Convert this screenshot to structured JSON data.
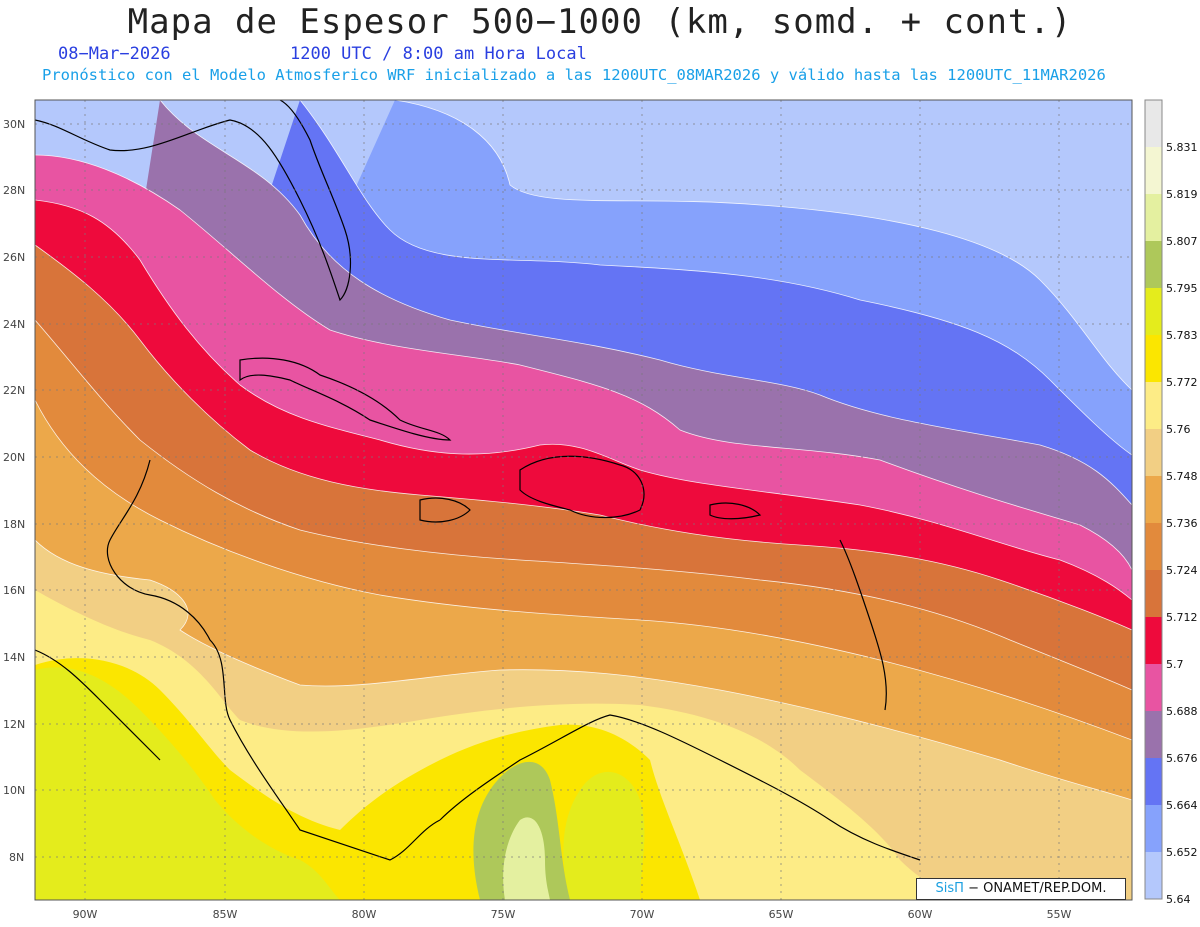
{
  "header": {
    "title": "Mapa de Espesor 500−1000 (km, somd. + cont.)",
    "date": "08−Mar−2026",
    "time": "1200 UTC / 8:00 am Hora Local",
    "subtitle": "Pronóstico con el Modelo Atmosferico WRF inicializado a las 1200UTC_08MAR2026 y válido hasta las  1200UTC_11MAR2026"
  },
  "axes": {
    "lat_labels": [
      "30N",
      "28N",
      "26N",
      "24N",
      "22N",
      "20N",
      "18N",
      "16N",
      "14N",
      "12N",
      "10N",
      "8N"
    ],
    "lon_labels": [
      "90W",
      "85W",
      "80W",
      "75W",
      "70W",
      "65W",
      "60W",
      "55W"
    ]
  },
  "legend": {
    "labels": [
      "5.831",
      "5.819",
      "5.807",
      "5.795",
      "5.783",
      "5.772",
      "5.76",
      "5.748",
      "5.736",
      "5.724",
      "5.712",
      "5.7",
      "5.688",
      "5.676",
      "5.664",
      "5.652",
      "5.64"
    ],
    "colors": [
      "#e8e8e8",
      "#f4f6d2",
      "#e4f0a0",
      "#aec85a",
      "#e4ec1c",
      "#fbe600",
      "#fdec86",
      "#f2cf84",
      "#eca84a",
      "#e28a3c",
      "#d8743a",
      "#ee0a3c",
      "#e854a2",
      "#9a72ac",
      "#6474f4",
      "#86a2fc",
      "#b4c8fc"
    ]
  },
  "credit": {
    "brand": "SisΠ",
    "text": " − ONAMET/REP.DOM."
  }
}
